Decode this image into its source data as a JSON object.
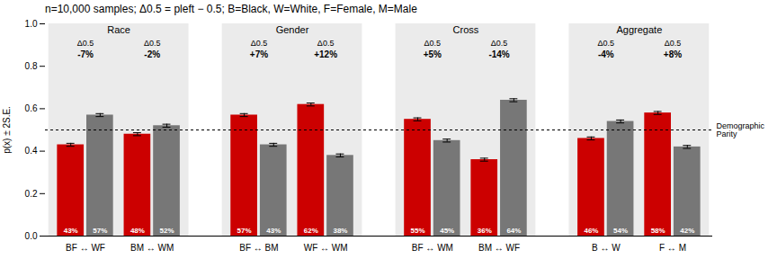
{
  "chart_data": {
    "type": "bar",
    "title": "n=10,000 samples; Δ0.5 = pleft − 0.5; B=Black, W=White, F=Female, M=Male",
    "ylabel": "p(x) ± 2S.E.",
    "categories": [
      "BF ↔ WF",
      "BM ↔ WM",
      "BF ↔ BM",
      "WF ↔ WM",
      "BF ↔ WM",
      "BM ↔ WF",
      "B ↔ W",
      "F ↔ M"
    ],
    "groups": [
      {
        "name": "Race",
        "categories": [
          "BF ↔ WF",
          "BM ↔ WM"
        ],
        "color": "#ebebeb"
      },
      {
        "name": "Gender",
        "categories": [
          "BF ↔ BM",
          "WF ↔ WM"
        ],
        "color": "#ebebeb"
      },
      {
        "name": "Cross",
        "categories": [
          "BF ↔ WM",
          "BM ↔ WF"
        ],
        "color": "#ebebeb"
      },
      {
        "name": "Aggregate",
        "categories": [
          "B ↔ W",
          "F ↔ M"
        ],
        "color": "#ebebeb"
      }
    ],
    "series": [
      {
        "color": "#cc0000",
        "values": [
          0.43,
          0.48,
          0.57,
          0.62,
          0.55,
          0.36,
          0.46,
          0.58
        ],
        "errors": [
          0.007,
          0.007,
          0.007,
          0.007,
          0.007,
          0.007,
          0.007,
          0.007
        ],
        "value_labels": [
          "43%",
          "48%",
          "57%",
          "62%",
          "55%",
          "36%",
          "46%",
          "58%"
        ]
      },
      {
        "color": "#777777",
        "values": [
          0.57,
          0.52,
          0.43,
          0.38,
          0.45,
          0.64,
          0.54,
          0.42
        ],
        "errors": [
          0.007,
          0.007,
          0.007,
          0.007,
          0.007,
          0.007,
          0.007,
          0.007
        ],
        "value_labels": [
          "57%",
          "52%",
          "43%",
          "38%",
          "45%",
          "64%",
          "54%",
          "42%"
        ]
      }
    ],
    "delta_labels": {
      "heading": "Δ0.5",
      "labels": [
        "-7%",
        "-2%",
        "+7%",
        "+12%",
        "+5%",
        "-14%",
        "-4%",
        "+8%"
      ]
    },
    "parity_line": {
      "value": 0.5,
      "label": "Demographic\nParity"
    },
    "ylim": [
      0,
      1
    ],
    "yticks": [
      {
        "value": 0,
        "label": "0.0"
      },
      0.2,
      0.4,
      0.6,
      0.8,
      {
        "value": 1,
        "label": "1.0"
      }
    ],
    "grid": false,
    "data_labels": true
  }
}
